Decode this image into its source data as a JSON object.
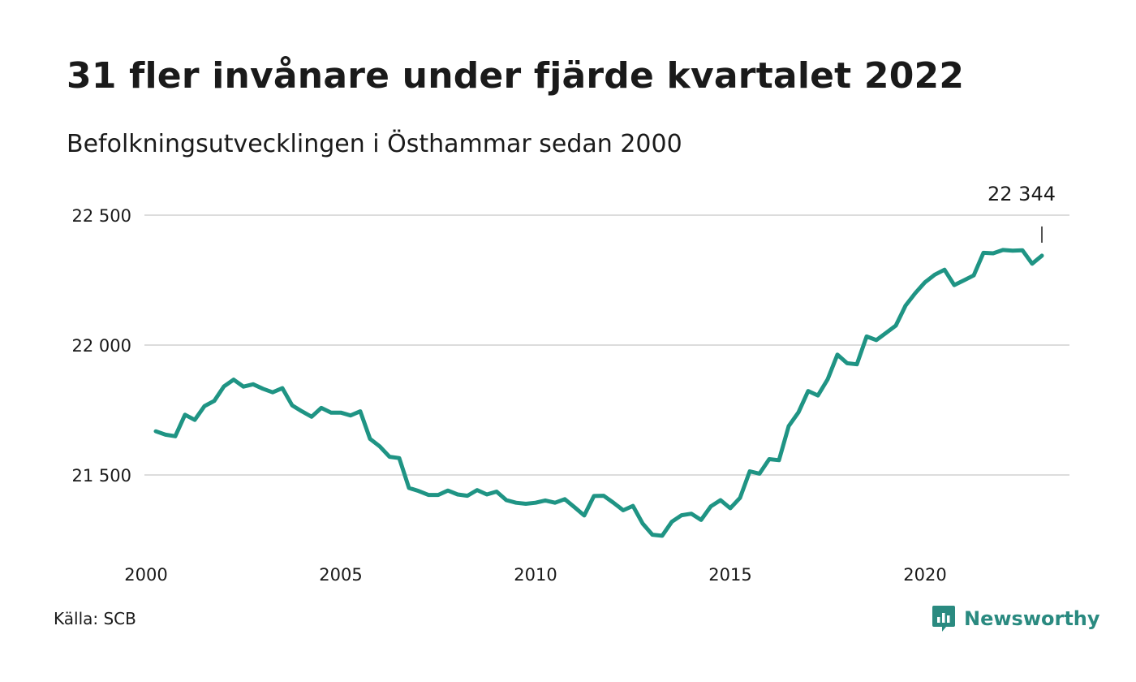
{
  "chart_data": {
    "type": "line",
    "title": "31 fler invånare under fjärde kvartalet 2022",
    "subtitle": "Befolkningsutvecklingen i Östhammar sedan 2000",
    "source": "Källa: SCB",
    "brand": "Newsworthy",
    "ylim": [
      21250,
      22520
    ],
    "yticks": [
      21500,
      22000,
      22500
    ],
    "ytick_labels": [
      "21 500",
      "22 000",
      "22 500"
    ],
    "xlim": [
      2000,
      2023.8
    ],
    "xticks": [
      2000,
      2005,
      2010,
      2015,
      2020
    ],
    "xtick_labels": [
      "2000",
      "2005",
      "2010",
      "2015",
      "2020"
    ],
    "grid": true,
    "last_value_label": "22 344",
    "series": [
      {
        "color": "#1f9484",
        "x": [
          2000.25,
          2000.5,
          2000.75,
          2001.0,
          2001.25,
          2001.5,
          2001.75,
          2002.0,
          2002.25,
          2002.5,
          2002.75,
          2003.0,
          2003.25,
          2003.5,
          2003.75,
          2004.0,
          2004.25,
          2004.5,
          2004.75,
          2005.0,
          2005.25,
          2005.5,
          2005.75,
          2006.0,
          2006.25,
          2006.5,
          2006.75,
          2007.0,
          2007.25,
          2007.5,
          2007.75,
          2008.0,
          2008.25,
          2008.5,
          2008.75,
          2009.0,
          2009.25,
          2009.5,
          2009.75,
          2010.0,
          2010.25,
          2010.5,
          2010.75,
          2011.0,
          2011.25,
          2011.5,
          2011.75,
          2012.0,
          2012.25,
          2012.5,
          2012.75,
          2013.0,
          2013.25,
          2013.5,
          2013.75,
          2014.0,
          2014.25,
          2014.5,
          2014.75,
          2015.0,
          2015.25,
          2015.5,
          2015.75,
          2016.0,
          2016.25,
          2016.5,
          2016.75,
          2017.0,
          2017.25,
          2017.5,
          2017.75,
          2018.0,
          2018.25,
          2018.5,
          2018.75,
          2019.0,
          2019.25,
          2019.5,
          2019.75,
          2020.0,
          2020.25,
          2020.5,
          2020.75,
          2021.0,
          2021.25,
          2021.5,
          2021.75,
          2022.0,
          2022.25,
          2022.5,
          2022.75,
          2023.0
        ],
        "y": [
          21668,
          21655,
          21649,
          21732,
          21712,
          21765,
          21785,
          21841,
          21867,
          21840,
          21849,
          21832,
          21818,
          21834,
          21768,
          21745,
          21724,
          21758,
          21740,
          21740,
          21729,
          21745,
          21639,
          21610,
          21570,
          21565,
          21450,
          21438,
          21423,
          21423,
          21440,
          21425,
          21420,
          21442,
          21425,
          21436,
          21403,
          21393,
          21389,
          21393,
          21402,
          21393,
          21407,
          21376,
          21344,
          21419,
          21420,
          21393,
          21364,
          21381,
          21313,
          21270,
          21266,
          21320,
          21345,
          21351,
          21327,
          21379,
          21403,
          21372,
          21412,
          21514,
          21505,
          21561,
          21557,
          21688,
          21741,
          21823,
          21806,
          21868,
          21963,
          21930,
          21926,
          22033,
          22019,
          22047,
          22075,
          22152,
          22200,
          22242,
          22271,
          22290,
          22231,
          22249,
          22268,
          22355,
          22353,
          22366,
          22363,
          22365,
          22313,
          22344
        ]
      }
    ]
  }
}
